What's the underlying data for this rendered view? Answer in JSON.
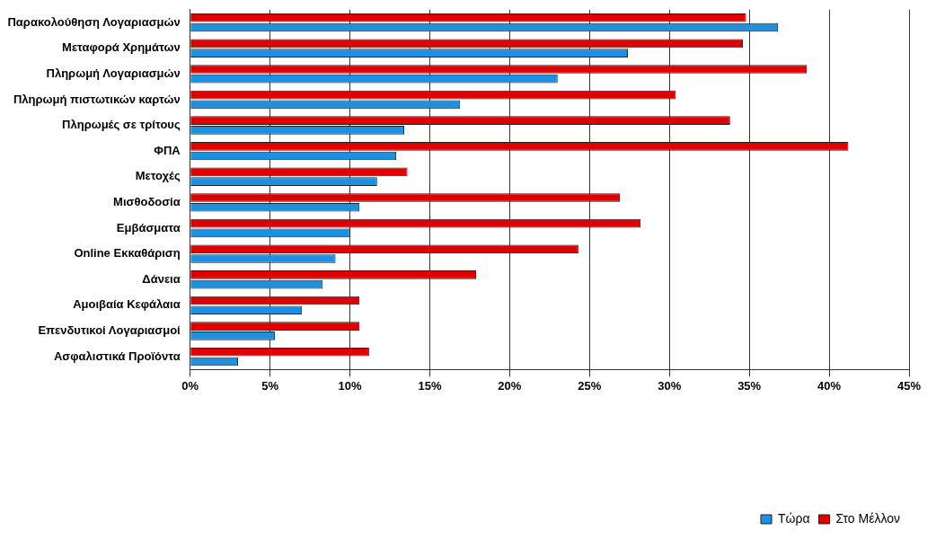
{
  "chart_data": {
    "type": "bar",
    "orientation": "horizontal",
    "categories": [
      "Παρακολούθηση Λογαριασμών",
      "Μεταφορά Χρημάτων",
      "Πληρωμή Λογαριασμών",
      "Πληρωμή πιστωτικών καρτών",
      "Πληρωμές σε τρίτους",
      "ΦΠΑ",
      "Μετοχές",
      "Μισθοδοσία",
      "Εμβάσματα",
      "Online Εκκαθάριση",
      "Δάνεια",
      "Αμοιβαία Κεφάλαια",
      "Επενδυτικοί Λογαριασμοί",
      "Ασφαλιστικά Προϊόντα"
    ],
    "series": [
      {
        "name": "Τώρα",
        "color": "#1e90e0",
        "values": [
          36.8,
          27.4,
          23,
          16.9,
          13.4,
          12.9,
          11.7,
          10.6,
          10,
          9.1,
          8.3,
          7,
          5.3,
          3
        ]
      },
      {
        "name": "Στο Μέλλον",
        "color": "#e00000",
        "values": [
          34.8,
          34.6,
          38.6,
          30.4,
          33.8,
          41.2,
          13.6,
          26.9,
          28.2,
          24.3,
          17.9,
          10.6,
          10.6,
          11.2
        ]
      }
    ],
    "xlim": [
      0,
      45
    ],
    "xticks": [
      {
        "value": 0,
        "label": "0%"
      },
      {
        "value": 5,
        "label": "5%"
      },
      {
        "value": 10,
        "label": "10%"
      },
      {
        "value": 15,
        "label": "15%"
      },
      {
        "value": 20,
        "label": "20%"
      },
      {
        "value": 25,
        "label": "25%"
      },
      {
        "value": 30,
        "label": "30%"
      },
      {
        "value": 35,
        "label": "35%"
      },
      {
        "value": 40,
        "label": "40%"
      },
      {
        "value": 45,
        "label": "45%"
      }
    ],
    "grid": "x",
    "legend": "bottom right"
  }
}
